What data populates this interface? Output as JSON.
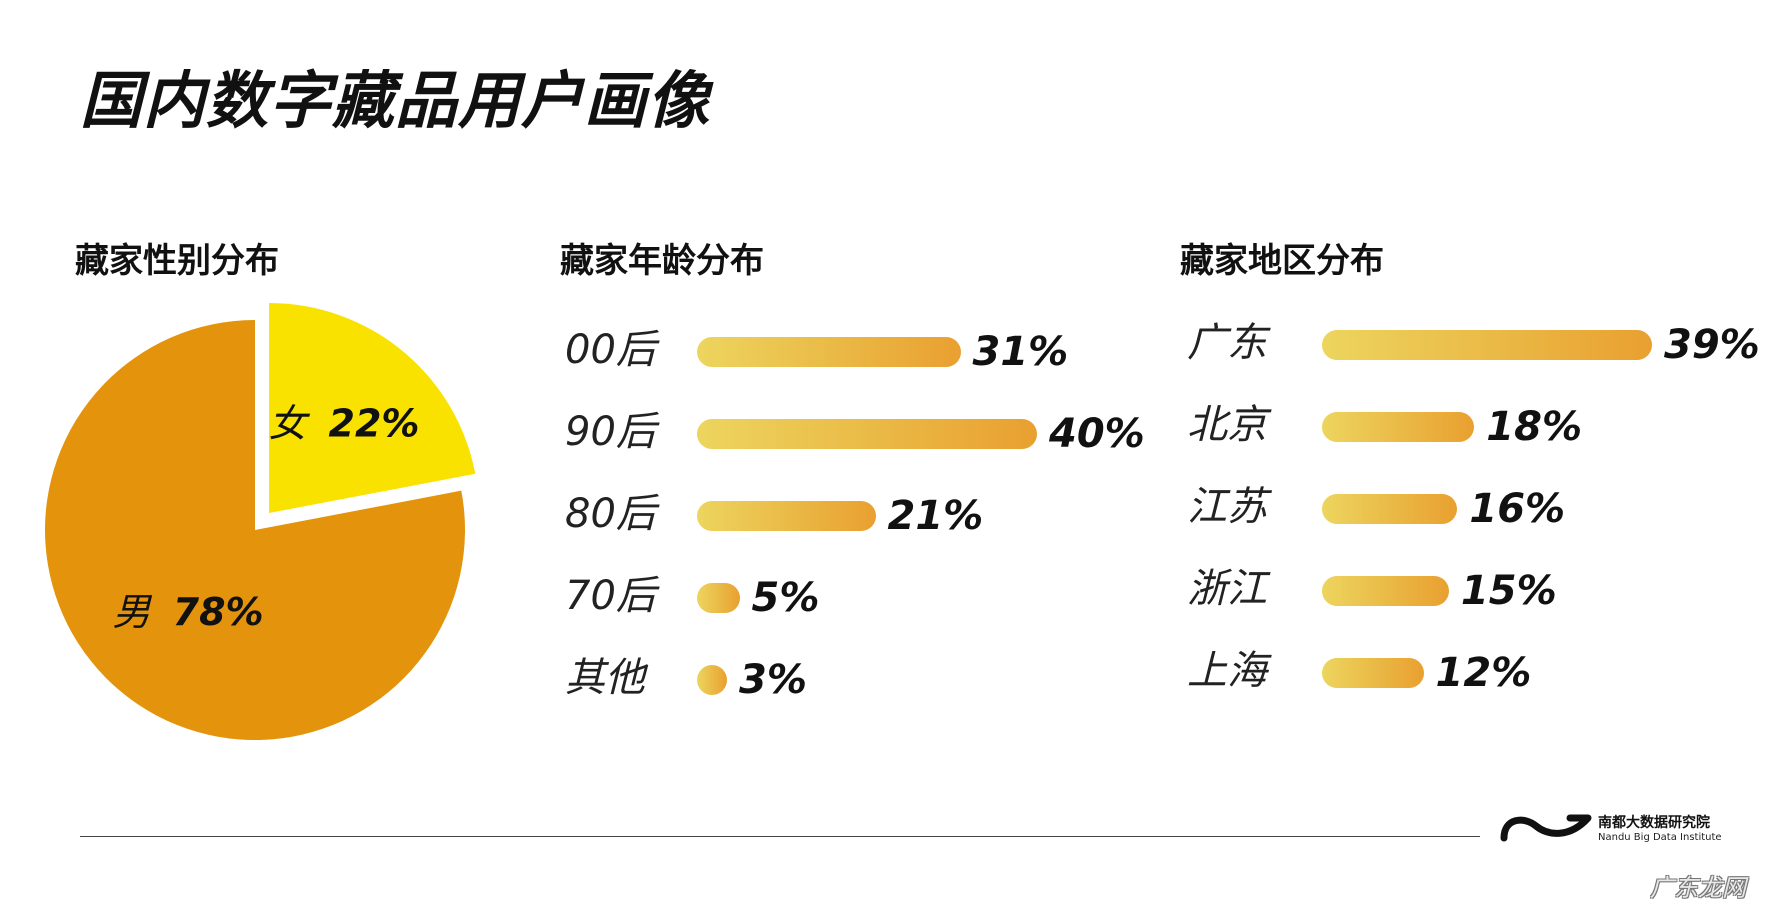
{
  "title": "国内数字藏品用户画像",
  "panels": {
    "gender": {
      "title": "藏家性别分布"
    },
    "age": {
      "title": "藏家年龄分布"
    },
    "region": {
      "title": "藏家地区分布"
    }
  },
  "chart_data": [
    {
      "type": "pie",
      "title": "藏家性别分布",
      "categories": [
        "女",
        "男"
      ],
      "values": [
        22,
        78
      ],
      "labels": [
        "22%",
        "78%"
      ],
      "colors": [
        "#f9e200",
        "#e4940c"
      ]
    },
    {
      "type": "bar",
      "title": "藏家年龄分布",
      "categories": [
        "00后",
        "90后",
        "80后",
        "70后",
        "其他"
      ],
      "values": [
        31,
        40,
        21,
        5,
        3
      ],
      "labels": [
        "31%",
        "40%",
        "21%",
        "5%",
        "3%"
      ],
      "colors": [
        "#ecd55e",
        "#e9a030"
      ]
    },
    {
      "type": "bar",
      "title": "藏家地区分布",
      "categories": [
        "广东",
        "北京",
        "江苏",
        "浙江",
        "上海"
      ],
      "values": [
        39,
        18,
        16,
        15,
        12
      ],
      "labels": [
        "39%",
        "18%",
        "16%",
        "15%",
        "12%"
      ],
      "colors": [
        "#ecd55e",
        "#e9a030"
      ]
    }
  ],
  "branding": {
    "name_cn": "南都大数据研究院",
    "name_en": "Nandu Big Data Institute"
  },
  "watermark": "广东龙网"
}
